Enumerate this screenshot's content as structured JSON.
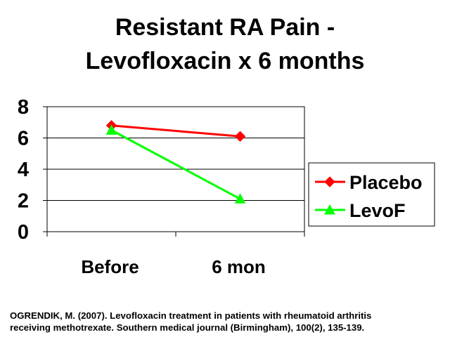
{
  "slide": {
    "title_line1": "Resistant RA Pain -",
    "title_line2": "Levofloxacin  x 6 months",
    "citation_line1": "OGRENDIK, M. (2007). Levofloxacin treatment in patients with rheumatoid arthritis",
    "citation_line2": "receiving methotrexate. Southern medical journal (Birmingham), 100(2), 135-139."
  },
  "chart_data": {
    "type": "line",
    "title": "Resistant RA Pain - Levofloxacin  x 6 months",
    "categories": [
      "Before",
      "6 mon"
    ],
    "series": [
      {
        "name": "Placebo",
        "values": [
          6.8,
          6.1
        ],
        "color": "#ff0000",
        "marker": "diamond"
      },
      {
        "name": "LevoF",
        "values": [
          6.5,
          2.1
        ],
        "color": "#00ff00",
        "marker": "triangle"
      }
    ],
    "xlabel": "",
    "ylabel": "",
    "ylim": [
      0,
      8
    ],
    "yticks": [
      0,
      2,
      4,
      6,
      8
    ],
    "grid": true,
    "legend_position": "right"
  }
}
